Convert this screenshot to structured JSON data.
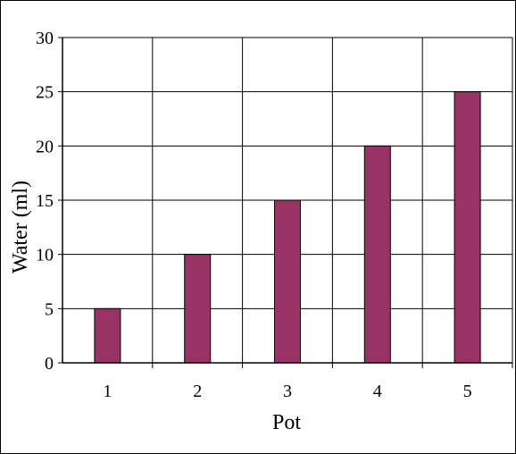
{
  "chart_data": {
    "type": "bar",
    "categories": [
      "1",
      "2",
      "3",
      "4",
      "5"
    ],
    "values": [
      5,
      10,
      15,
      20,
      25
    ],
    "title": "",
    "xlabel": "Pot",
    "ylabel": "Water (ml)",
    "ylim": [
      0,
      30
    ],
    "yticks": [
      "0",
      "5",
      "10",
      "15",
      "20",
      "25",
      "30"
    ],
    "grid": true,
    "legend": "none",
    "colors": {
      "bar_fill": "#993366",
      "bar_stroke": "#000000",
      "grid": "#000000",
      "background": "#ffffff"
    }
  }
}
